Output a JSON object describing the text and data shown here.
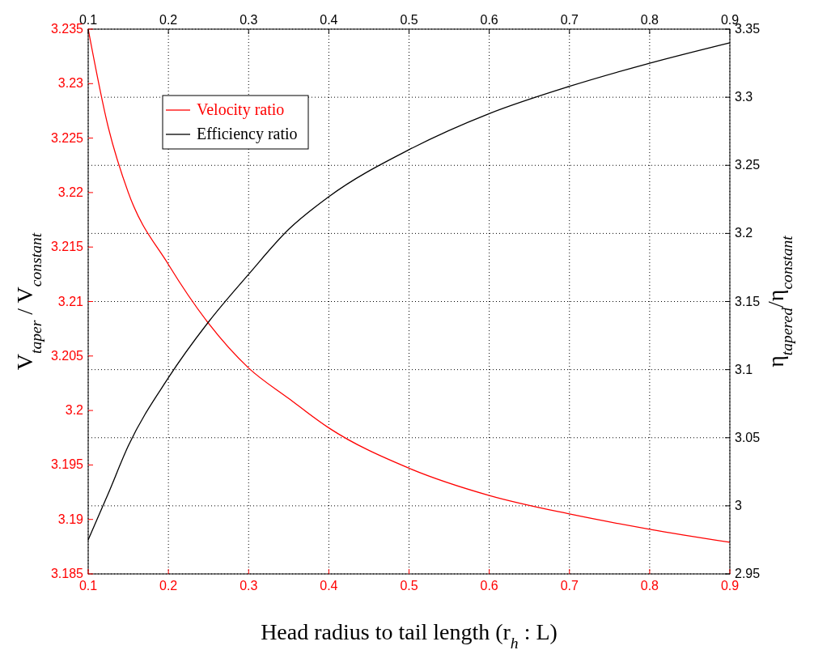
{
  "chart_data": {
    "type": "line",
    "xlabel": "Head radius to tail length (r$_{h}$ : L)",
    "ylabel": "V$_{taper}$ / V$_{constant}$",
    "y2label": "η$_{tapered}$/η$_{constant}$",
    "x": [
      0.1,
      0.125,
      0.15,
      0.2,
      0.25,
      0.3,
      0.35,
      0.4,
      0.5,
      0.6,
      0.7,
      0.8,
      0.9
    ],
    "series": [
      {
        "name": "Velocity ratio",
        "color": "#ff0000",
        "values": [
          3.235,
          3.226,
          3.22,
          3.2134,
          3.208,
          3.2039,
          3.2011,
          3.1984,
          3.1947,
          3.1922,
          3.1905,
          3.1891,
          3.1879
        ]
      },
      {
        "name": "Efficiency ratio",
        "color": "#000000",
        "axis": "y2",
        "values": [
          2.975,
          3.009,
          3.044,
          3.094,
          3.135,
          3.17,
          3.203,
          3.227,
          3.2615,
          3.288,
          3.308,
          3.325,
          3.34
        ]
      }
    ],
    "xlim": [
      0.1,
      0.9
    ],
    "xticks": [
      0.1,
      0.2,
      0.3,
      0.4,
      0.5,
      0.6,
      0.7,
      0.8,
      0.9
    ],
    "x2lim": [
      0.1,
      0.9
    ],
    "x2ticks": [
      0.1,
      0.2,
      0.3,
      0.4,
      0.5,
      0.6,
      0.7,
      0.8,
      0.9
    ],
    "ylim": [
      3.185,
      3.235
    ],
    "yticks": [
      3.185,
      3.19,
      3.195,
      3.2,
      3.205,
      3.21,
      3.215,
      3.22,
      3.225,
      3.23,
      3.235
    ],
    "y2lim": [
      2.95,
      3.35
    ],
    "y2ticks": [
      2.95,
      3,
      3.05,
      3.1,
      3.15,
      3.2,
      3.25,
      3.3,
      3.35
    ],
    "grid": true,
    "legend": "top left",
    "line_style": "solid"
  }
}
